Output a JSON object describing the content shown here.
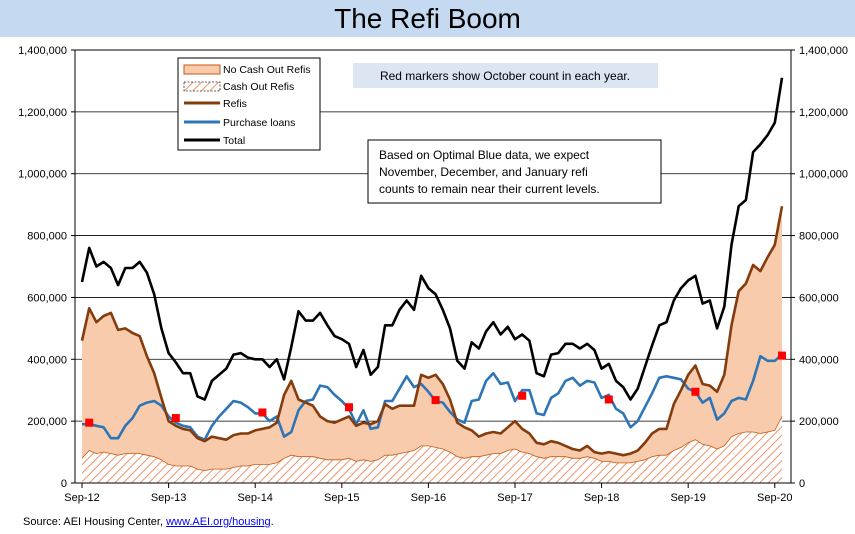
{
  "title": "The Refi Boom",
  "source": {
    "label": "Source: AEI Housing Center, ",
    "link_text": "www.AEI.org/housing",
    "suffix": "."
  },
  "annotations": {
    "red_markers": "Red markers show October count in each year.",
    "note_lines": [
      "Based on Optimal Blue data, we expect",
      "November, December, and January refi",
      "counts to remain near their current levels."
    ]
  },
  "colors": {
    "no_cash_out_fill": "#f8cbad",
    "no_cash_out_line": "#c55a11",
    "cash_out_hatch": "#e8794a",
    "refis": "#843c0c",
    "purchase": "#2e75b6",
    "total": "#000000",
    "october_marker": "#ff0000"
  },
  "chart_data": {
    "type": "line",
    "x_tick_labels": [
      "Sep-12",
      "Sep-13",
      "Sep-14",
      "Sep-15",
      "Sep-16",
      "Sep-17",
      "Sep-18",
      "Sep-19",
      "Sep-20"
    ],
    "x_tick_start_index": 0,
    "x_tick_step_months": 12,
    "y_left_ticks": [
      "0",
      "200,000",
      "400,000",
      "600,000",
      "800,000",
      "1,000,000",
      "1,200,000",
      "1,400,000"
    ],
    "y_right_ticks": [
      "0",
      "200,000",
      "400,000",
      "600,000",
      "800,000",
      "1,000,000",
      "1,200,000",
      "1,400,000"
    ],
    "ylim": [
      0,
      1400000
    ],
    "y_grid": true,
    "legend_entries": [
      "No Cash Out Refis",
      "Cash Out Refis",
      "Refis",
      "Purchase loans",
      "Total"
    ],
    "series": [
      {
        "name": "Total",
        "values": [
          650000,
          760000,
          700000,
          715000,
          695000,
          640000,
          695000,
          695000,
          715000,
          680000,
          610000,
          500000,
          420000,
          390000,
          355000,
          355000,
          280000,
          270000,
          330000,
          350000,
          370000,
          415000,
          420000,
          405000,
          400000,
          400000,
          375000,
          400000,
          335000,
          440000,
          555000,
          525000,
          525000,
          550000,
          510000,
          475000,
          465000,
          450000,
          375000,
          430000,
          350000,
          375000,
          510000,
          510000,
          560000,
          590000,
          560000,
          670000,
          630000,
          610000,
          560000,
          500000,
          395000,
          370000,
          455000,
          435000,
          490000,
          520000,
          480000,
          505000,
          465000,
          480000,
          460000,
          355000,
          345000,
          415000,
          420000,
          450000,
          450000,
          435000,
          450000,
          430000,
          370000,
          385000,
          330000,
          310000,
          270000,
          305000,
          375000,
          445000,
          510000,
          520000,
          590000,
          630000,
          655000,
          670000,
          580000,
          590000,
          500000,
          570000,
          770000,
          895000,
          915000,
          1070000,
          1095000,
          1125000,
          1165000,
          1310000
        ]
      },
      {
        "name": "Refis",
        "values": [
          460000,
          565000,
          520000,
          540000,
          550000,
          495000,
          500000,
          485000,
          475000,
          410000,
          355000,
          275000,
          200000,
          185000,
          175000,
          170000,
          145000,
          135000,
          150000,
          145000,
          140000,
          155000,
          160000,
          160000,
          170000,
          175000,
          180000,
          195000,
          285000,
          330000,
          270000,
          260000,
          250000,
          215000,
          200000,
          195000,
          205000,
          215000,
          185000,
          195000,
          190000,
          200000,
          255000,
          240000,
          250000,
          250000,
          250000,
          350000,
          340000,
          350000,
          320000,
          270000,
          195000,
          180000,
          170000,
          150000,
          160000,
          165000,
          160000,
          180000,
          200000,
          175000,
          160000,
          130000,
          125000,
          135000,
          130000,
          120000,
          110000,
          105000,
          120000,
          100000,
          95000,
          100000,
          95000,
          90000,
          95000,
          105000,
          130000,
          160000,
          175000,
          175000,
          255000,
          300000,
          350000,
          380000,
          320000,
          315000,
          295000,
          350000,
          510000,
          620000,
          645000,
          705000,
          685000,
          730000,
          770000,
          895000
        ]
      },
      {
        "name": "Purchase loans",
        "values": [
          190000,
          190000,
          185000,
          180000,
          145000,
          145000,
          185000,
          210000,
          250000,
          260000,
          265000,
          250000,
          215000,
          195000,
          185000,
          180000,
          150000,
          140000,
          185000,
          215000,
          240000,
          265000,
          260000,
          245000,
          225000,
          225000,
          200000,
          215000,
          150000,
          165000,
          235000,
          265000,
          270000,
          315000,
          310000,
          285000,
          265000,
          240000,
          190000,
          235000,
          175000,
          180000,
          265000,
          265000,
          305000,
          345000,
          310000,
          320000,
          295000,
          265000,
          260000,
          230000,
          205000,
          195000,
          265000,
          270000,
          330000,
          355000,
          320000,
          325000,
          265000,
          300000,
          300000,
          225000,
          220000,
          275000,
          290000,
          330000,
          340000,
          315000,
          330000,
          325000,
          275000,
          285000,
          240000,
          225000,
          180000,
          200000,
          245000,
          290000,
          340000,
          345000,
          340000,
          335000,
          305000,
          295000,
          260000,
          275000,
          205000,
          225000,
          265000,
          275000,
          270000,
          330000,
          410000,
          395000,
          395000,
          415000
        ]
      },
      {
        "name": "Cash Out Refis",
        "values": [
          80000,
          105000,
          95000,
          100000,
          95000,
          90000,
          95000,
          95000,
          95000,
          90000,
          85000,
          75000,
          60000,
          55000,
          55000,
          55000,
          45000,
          40000,
          45000,
          45000,
          45000,
          50000,
          55000,
          55000,
          60000,
          60000,
          60000,
          65000,
          80000,
          90000,
          85000,
          85000,
          85000,
          80000,
          75000,
          75000,
          75000,
          80000,
          70000,
          75000,
          70000,
          75000,
          90000,
          90000,
          95000,
          100000,
          105000,
          120000,
          120000,
          115000,
          110000,
          100000,
          85000,
          80000,
          85000,
          85000,
          90000,
          95000,
          95000,
          105000,
          110000,
          100000,
          95000,
          85000,
          80000,
          85000,
          85000,
          85000,
          80000,
          80000,
          85000,
          80000,
          70000,
          70000,
          65000,
          65000,
          65000,
          70000,
          75000,
          85000,
          90000,
          90000,
          105000,
          115000,
          130000,
          140000,
          125000,
          120000,
          110000,
          120000,
          150000,
          160000,
          165000,
          165000,
          160000,
          165000,
          170000,
          215000
        ]
      },
      {
        "name": "October count (red markers)",
        "x_index": [
          1,
          13,
          25,
          37,
          49,
          61,
          73,
          85,
          97
        ],
        "values": [
          195000,
          210000,
          228000,
          245000,
          268000,
          282000,
          270000,
          295000,
          412000
        ]
      }
    ]
  }
}
